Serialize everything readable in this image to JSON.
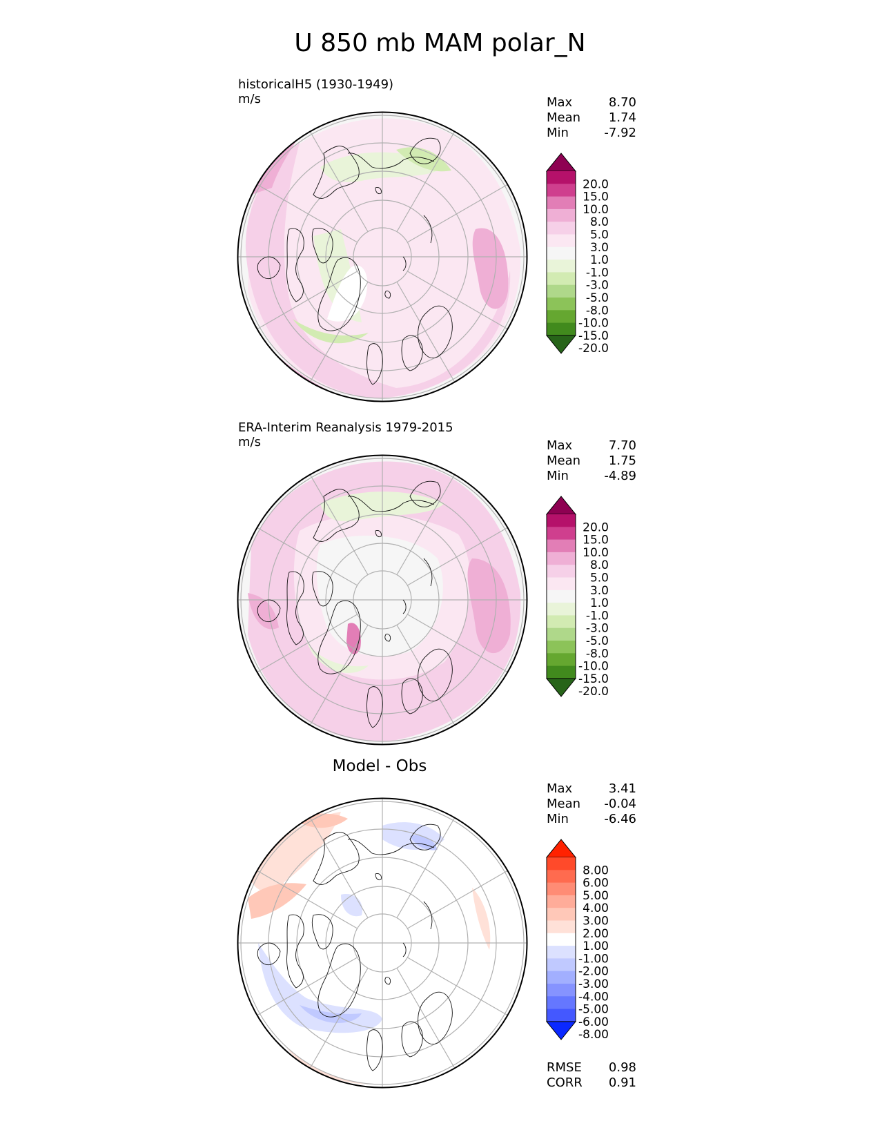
{
  "title": "U 850 mb MAM polar_N",
  "chart_data": [
    {
      "type": "heatmap",
      "projection": "north polar stereographic",
      "title_line1": "historicalH5 (1930-1949)",
      "title_line2": "m/s",
      "stats": [
        {
          "label": "Max",
          "value": "8.70"
        },
        {
          "label": "Mean",
          "value": "1.74"
        },
        {
          "label": "Min",
          "value": "-7.92"
        }
      ],
      "colorbar": {
        "levels": [
          "20.0",
          "15.0",
          "10.0",
          "8.0",
          "5.0",
          "3.0",
          "1.0",
          "-1.0",
          "-3.0",
          "-5.0",
          "-8.0",
          "-10.0",
          "-15.0",
          "-20.0"
        ],
        "colors": [
          "#8e0152",
          "#b5116a",
          "#cf3f8e",
          "#e27eb6",
          "#efafd5",
          "#f6d0e8",
          "#fbe7f2",
          "#f6f6f6",
          "#e9f4d9",
          "#d2ebb2",
          "#afd88a",
          "#8cc359",
          "#65a730",
          "#418a1d",
          "#276419"
        ],
        "extend": "both"
      }
    },
    {
      "type": "heatmap",
      "projection": "north polar stereographic",
      "title_line1": "ERA-Interim Reanalysis 1979-2015",
      "title_line2": "m/s",
      "stats": [
        {
          "label": "Max",
          "value": "7.70"
        },
        {
          "label": "Mean",
          "value": "1.75"
        },
        {
          "label": "Min",
          "value": "-4.89"
        }
      ],
      "colorbar": {
        "levels": [
          "20.0",
          "15.0",
          "10.0",
          "8.0",
          "5.0",
          "3.0",
          "1.0",
          "-1.0",
          "-3.0",
          "-5.0",
          "-8.0",
          "-10.0",
          "-15.0",
          "-20.0"
        ],
        "colors": [
          "#8e0152",
          "#b5116a",
          "#cf3f8e",
          "#e27eb6",
          "#efafd5",
          "#f6d0e8",
          "#fbe7f2",
          "#f6f6f6",
          "#e9f4d9",
          "#d2ebb2",
          "#afd88a",
          "#8cc359",
          "#65a730",
          "#418a1d",
          "#276419"
        ],
        "extend": "both"
      }
    },
    {
      "type": "heatmap",
      "projection": "north polar stereographic",
      "title_line1": "Model - Obs",
      "title_line2": "",
      "stats": [
        {
          "label": "Max",
          "value": "3.41"
        },
        {
          "label": "Mean",
          "value": "-0.04"
        },
        {
          "label": "Min",
          "value": "-6.46"
        }
      ],
      "colorbar": {
        "levels": [
          "8.00",
          "6.00",
          "5.00",
          "4.00",
          "3.00",
          "2.00",
          "1.00",
          "-1.00",
          "-2.00",
          "-3.00",
          "-4.00",
          "-5.00",
          "-6.00",
          "-8.00"
        ],
        "colors": [
          "#ff2200",
          "#ff4a2a",
          "#ff6b4f",
          "#ff8c75",
          "#ffac99",
          "#ffc8b8",
          "#ffe1d8",
          "#ffffff",
          "#dce1ff",
          "#c0c9ff",
          "#a2afff",
          "#8693ff",
          "#6577ff",
          "#4458ff",
          "#0a28ff"
        ],
        "extend": "both"
      },
      "rmse": {
        "label": "RMSE",
        "value": "0.98"
      },
      "corr": {
        "label": "CORR",
        "value": "0.91"
      }
    }
  ]
}
